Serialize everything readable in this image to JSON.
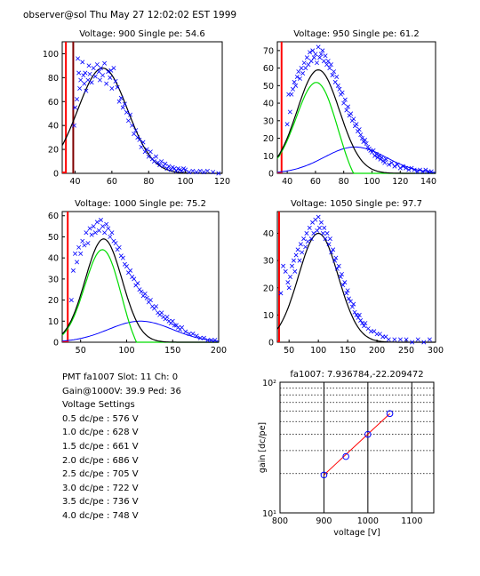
{
  "header": {
    "title": "observer@sol  Thu May 27 12:02:02 EST 1999"
  },
  "info": {
    "pmt_line": "PMT fa1007 Slot: 11 Ch: 0",
    "gain_line": "Gain@1000V: 39.9 Ped: 36",
    "voltage_heading": "Voltage Settings",
    "settings": [
      "0.5 dc/pe : 576 V",
      "1.0 dc/pe : 628 V",
      "1.5 dc/pe : 661 V",
      "2.0 dc/pe : 686 V",
      "2.5 dc/pe : 705 V",
      "3.0 dc/pe : 722 V",
      "3.5 dc/pe : 736 V",
      "4.0 dc/pe : 748 V"
    ]
  },
  "colors": {
    "data": "#0000ff",
    "fit_total": "#000000",
    "fit_pe": "#00dd00",
    "fit_bg": "#0000ff",
    "ped": "#ff0000",
    "ped_dark": "#800000",
    "gain_line": "#ff0000"
  },
  "chart_data": [
    {
      "type": "scatter",
      "title": "Voltage: 900 Single pe: 54.6",
      "xlim": [
        33,
        120
      ],
      "ylim": [
        0,
        110
      ],
      "xticks": [
        40,
        60,
        80,
        100,
        120
      ],
      "yticks": [
        0,
        20,
        40,
        60,
        80,
        100
      ],
      "ped_x": 35,
      "ped2_x": 39,
      "fit": {
        "total": {
          "A": 88,
          "mu": 55,
          "sigma": 13.5
        },
        "bg": {
          "A": 0,
          "mu": 60,
          "sigma": 20
        }
      },
      "points": [
        [
          39.5,
          40
        ],
        [
          40,
          55
        ],
        [
          41,
          62
        ],
        [
          41.5,
          96
        ],
        [
          42,
          84
        ],
        [
          42.5,
          71
        ],
        [
          43,
          78
        ],
        [
          44,
          93
        ],
        [
          44.5,
          82
        ],
        [
          45,
          75
        ],
        [
          45.5,
          84
        ],
        [
          46,
          69
        ],
        [
          47,
          78
        ],
        [
          47.5,
          90
        ],
        [
          48,
          83
        ],
        [
          49,
          76
        ],
        [
          50,
          88
        ],
        [
          51,
          81
        ],
        [
          52,
          91
        ],
        [
          53,
          85
        ],
        [
          53.5,
          78
        ],
        [
          54,
          88
        ],
        [
          55,
          82
        ],
        [
          56,
          92
        ],
        [
          57,
          75
        ],
        [
          58,
          85
        ],
        [
          59,
          80
        ],
        [
          59.5,
          86
        ],
        [
          60,
          71
        ],
        [
          61,
          88
        ],
        [
          62,
          77
        ],
        [
          63,
          72
        ],
        [
          64,
          60
        ],
        [
          65,
          63
        ],
        [
          66,
          55
        ],
        [
          67,
          58
        ],
        [
          68,
          51
        ],
        [
          69,
          44
        ],
        [
          70,
          49
        ],
        [
          71,
          40
        ],
        [
          72,
          33
        ],
        [
          73,
          36
        ],
        [
          74,
          30
        ],
        [
          75,
          28
        ],
        [
          76,
          22
        ],
        [
          77,
          26
        ],
        [
          78,
          18
        ],
        [
          79,
          20
        ],
        [
          80,
          14
        ],
        [
          81,
          18
        ],
        [
          82,
          12
        ],
        [
          83,
          10
        ],
        [
          84,
          14
        ],
        [
          85,
          9
        ],
        [
          86,
          7
        ],
        [
          87,
          10
        ],
        [
          88,
          6
        ],
        [
          89,
          8
        ],
        [
          90,
          4
        ],
        [
          91,
          6
        ],
        [
          92,
          3
        ],
        [
          93,
          5
        ],
        [
          94,
          4
        ],
        [
          95,
          2
        ],
        [
          96,
          4
        ],
        [
          97,
          3
        ],
        [
          98,
          2
        ],
        [
          99,
          4
        ],
        [
          100,
          3
        ],
        [
          102,
          1
        ],
        [
          104,
          2
        ],
        [
          106,
          1
        ],
        [
          108,
          2
        ],
        [
          110,
          1
        ],
        [
          112,
          2
        ],
        [
          115,
          1
        ],
        [
          118,
          0
        ]
      ]
    },
    {
      "type": "scatter",
      "title": "Voltage: 950 Single pe: 61.2",
      "xlim": [
        33,
        145
      ],
      "ylim": [
        0,
        75
      ],
      "xticks": [
        40,
        60,
        80,
        100,
        120,
        140
      ],
      "yticks": [
        0,
        10,
        20,
        30,
        40,
        50,
        60,
        70
      ],
      "ped_x": 36,
      "fit": {
        "total": {
          "A": 59,
          "mu": 62,
          "sigma": 15
        },
        "bg": {
          "A": 15,
          "mu": 88,
          "sigma": 22
        }
      },
      "points": [
        [
          40,
          28
        ],
        [
          41,
          45
        ],
        [
          42,
          35
        ],
        [
          43,
          45
        ],
        [
          44,
          48
        ],
        [
          45,
          52
        ],
        [
          46,
          50
        ],
        [
          47,
          55
        ],
        [
          48,
          58
        ],
        [
          49,
          54
        ],
        [
          50,
          60
        ],
        [
          51,
          57
        ],
        [
          52,
          63
        ],
        [
          53,
          60
        ],
        [
          54,
          66
        ],
        [
          55,
          62
        ],
        [
          56,
          69
        ],
        [
          57,
          64
        ],
        [
          58,
          70
        ],
        [
          59,
          66
        ],
        [
          60,
          68
        ],
        [
          61,
          63
        ],
        [
          62,
          72
        ],
        [
          63,
          66
        ],
        [
          64,
          68
        ],
        [
          65,
          70
        ],
        [
          66,
          64
        ],
        [
          67,
          67
        ],
        [
          68,
          62
        ],
        [
          69,
          64
        ],
        [
          70,
          60
        ],
        [
          71,
          62
        ],
        [
          72,
          56
        ],
        [
          73,
          58
        ],
        [
          74,
          52
        ],
        [
          75,
          55
        ],
        [
          76,
          50
        ],
        [
          77,
          48
        ],
        [
          78,
          45
        ],
        [
          79,
          46
        ],
        [
          80,
          40
        ],
        [
          81,
          42
        ],
        [
          82,
          36
        ],
        [
          83,
          38
        ],
        [
          84,
          33
        ],
        [
          85,
          34
        ],
        [
          86,
          30
        ],
        [
          87,
          31
        ],
        [
          88,
          27
        ],
        [
          89,
          28
        ],
        [
          90,
          24
        ],
        [
          91,
          25
        ],
        [
          92,
          22
        ],
        [
          93,
          20
        ],
        [
          94,
          18
        ],
        [
          95,
          19
        ],
        [
          96,
          17
        ],
        [
          97,
          15
        ],
        [
          98,
          14
        ],
        [
          99,
          13
        ],
        [
          100,
          12
        ],
        [
          101,
          13
        ],
        [
          102,
          10
        ],
        [
          103,
          11
        ],
        [
          104,
          9
        ],
        [
          105,
          10
        ],
        [
          106,
          8
        ],
        [
          107,
          9
        ],
        [
          108,
          7
        ],
        [
          109,
          6
        ],
        [
          110,
          8
        ],
        [
          112,
          5
        ],
        [
          114,
          6
        ],
        [
          116,
          4
        ],
        [
          118,
          5
        ],
        [
          120,
          3
        ],
        [
          122,
          4
        ],
        [
          124,
          3
        ],
        [
          126,
          2
        ],
        [
          128,
          3
        ],
        [
          130,
          2
        ],
        [
          132,
          1
        ],
        [
          134,
          2
        ],
        [
          136,
          1
        ],
        [
          138,
          2
        ],
        [
          140,
          1
        ],
        [
          142,
          1
        ]
      ]
    },
    {
      "type": "scatter",
      "title": "Voltage: 1000 Single pe: 75.2",
      "xlim": [
        30,
        200
      ],
      "ylim": [
        0,
        62
      ],
      "xticks": [
        50,
        100,
        150,
        200
      ],
      "yticks": [
        0,
        10,
        20,
        30,
        40,
        50,
        60
      ],
      "ped_x": 36,
      "fit": {
        "total": {
          "A": 49,
          "mu": 75,
          "sigma": 20
        },
        "bg": {
          "A": 10,
          "mu": 115,
          "sigma": 35
        }
      },
      "points": [
        [
          40,
          20
        ],
        [
          42,
          34
        ],
        [
          44,
          42
        ],
        [
          46,
          38
        ],
        [
          48,
          45
        ],
        [
          50,
          42
        ],
        [
          52,
          48
        ],
        [
          54,
          46
        ],
        [
          56,
          52
        ],
        [
          58,
          47
        ],
        [
          60,
          54
        ],
        [
          62,
          51
        ],
        [
          64,
          55
        ],
        [
          66,
          52
        ],
        [
          68,
          57
        ],
        [
          70,
          53
        ],
        [
          72,
          58
        ],
        [
          74,
          55
        ],
        [
          76,
          52
        ],
        [
          78,
          56
        ],
        [
          80,
          54
        ],
        [
          82,
          50
        ],
        [
          84,
          52
        ],
        [
          86,
          48
        ],
        [
          88,
          47
        ],
        [
          90,
          44
        ],
        [
          92,
          45
        ],
        [
          94,
          41
        ],
        [
          96,
          40
        ],
        [
          98,
          37
        ],
        [
          100,
          36
        ],
        [
          102,
          33
        ],
        [
          104,
          34
        ],
        [
          106,
          31
        ],
        [
          108,
          30
        ],
        [
          110,
          27
        ],
        [
          112,
          28
        ],
        [
          114,
          25
        ],
        [
          116,
          24
        ],
        [
          118,
          22
        ],
        [
          120,
          23
        ],
        [
          122,
          21
        ],
        [
          124,
          19
        ],
        [
          126,
          20
        ],
        [
          128,
          17
        ],
        [
          130,
          16
        ],
        [
          132,
          17
        ],
        [
          134,
          14
        ],
        [
          136,
          13
        ],
        [
          138,
          14
        ],
        [
          140,
          12
        ],
        [
          142,
          11
        ],
        [
          144,
          12
        ],
        [
          146,
          10
        ],
        [
          148,
          9
        ],
        [
          150,
          10
        ],
        [
          152,
          8
        ],
        [
          154,
          8
        ],
        [
          156,
          7
        ],
        [
          158,
          6
        ],
        [
          160,
          7
        ],
        [
          164,
          5
        ],
        [
          168,
          4
        ],
        [
          172,
          4
        ],
        [
          176,
          3
        ],
        [
          180,
          2
        ],
        [
          184,
          2
        ],
        [
          188,
          1
        ],
        [
          192,
          1
        ],
        [
          196,
          1
        ]
      ]
    },
    {
      "type": "scatter",
      "title": "Voltage: 1050 Single pe: 97.7",
      "xlim": [
        30,
        300
      ],
      "ylim": [
        0,
        48
      ],
      "xticks": [
        50,
        100,
        150,
        200,
        250,
        300
      ],
      "yticks": [
        0,
        10,
        20,
        30,
        40
      ],
      "ped_x": 33,
      "fit": {
        "total": {
          "A": 40,
          "mu": 100,
          "sigma": 34
        },
        "bg": {
          "A": 0,
          "mu": 120,
          "sigma": 40
        }
      },
      "points": [
        [
          36,
          18
        ],
        [
          40,
          28
        ],
        [
          44,
          26
        ],
        [
          48,
          22
        ],
        [
          50,
          20
        ],
        [
          52,
          24
        ],
        [
          55,
          28
        ],
        [
          58,
          30
        ],
        [
          60,
          26
        ],
        [
          62,
          32
        ],
        [
          65,
          34
        ],
        [
          68,
          30
        ],
        [
          70,
          36
        ],
        [
          72,
          33
        ],
        [
          75,
          38
        ],
        [
          78,
          35
        ],
        [
          80,
          40
        ],
        [
          82,
          37
        ],
        [
          85,
          42
        ],
        [
          88,
          38
        ],
        [
          90,
          44
        ],
        [
          92,
          40
        ],
        [
          95,
          45
        ],
        [
          98,
          41
        ],
        [
          100,
          46
        ],
        [
          102,
          42
        ],
        [
          105,
          44
        ],
        [
          108,
          40
        ],
        [
          110,
          42
        ],
        [
          112,
          38
        ],
        [
          115,
          40
        ],
        [
          118,
          36
        ],
        [
          120,
          38
        ],
        [
          122,
          33
        ],
        [
          125,
          34
        ],
        [
          128,
          30
        ],
        [
          130,
          31
        ],
        [
          132,
          27
        ],
        [
          135,
          28
        ],
        [
          138,
          24
        ],
        [
          140,
          25
        ],
        [
          142,
          21
        ],
        [
          145,
          22
        ],
        [
          148,
          18
        ],
        [
          150,
          19
        ],
        [
          152,
          16
        ],
        [
          155,
          15
        ],
        [
          158,
          13
        ],
        [
          160,
          14
        ],
        [
          162,
          11
        ],
        [
          165,
          10
        ],
        [
          168,
          9
        ],
        [
          170,
          10
        ],
        [
          172,
          8
        ],
        [
          175,
          7
        ],
        [
          178,
          6
        ],
        [
          180,
          7
        ],
        [
          185,
          5
        ],
        [
          190,
          4
        ],
        [
          195,
          4
        ],
        [
          200,
          3
        ],
        [
          205,
          3
        ],
        [
          210,
          2
        ],
        [
          215,
          2
        ],
        [
          220,
          1
        ],
        [
          230,
          1
        ],
        [
          240,
          1
        ],
        [
          250,
          1
        ],
        [
          260,
          0
        ],
        [
          270,
          1
        ],
        [
          280,
          0
        ],
        [
          290,
          1
        ]
      ]
    },
    {
      "type": "line",
      "title": "fa1007: 7.936784,-22.209472",
      "xlabel": "voltage [V]",
      "ylabel": "gain [dc/pe]",
      "xlim": [
        800,
        1150
      ],
      "ylim_log": [
        10,
        100
      ],
      "yscale": "log",
      "xticks": [
        800,
        900,
        1000,
        1100
      ],
      "yticks": [
        "10¹",
        "10²"
      ],
      "grid_x": [
        900,
        1000,
        1100
      ],
      "grid_y": [
        20,
        30,
        40,
        50,
        60,
        70,
        80,
        90
      ],
      "line": [
        [
          900,
          19.5
        ],
        [
          1050,
          57.5
        ]
      ],
      "points": [
        [
          900,
          19.5
        ],
        [
          950,
          27
        ],
        [
          1000,
          39.9
        ],
        [
          1050,
          57.5
        ]
      ]
    }
  ]
}
